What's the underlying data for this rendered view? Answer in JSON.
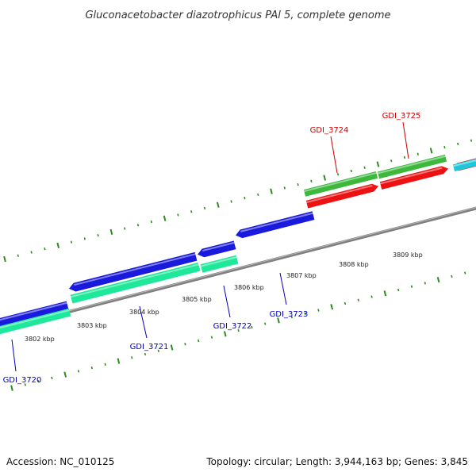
{
  "title": "Gluconacetobacter diazotrophicus PAl 5, complete genome",
  "footer": {
    "accession": "Accession: NC_010125",
    "summary": "Topology: circular; Length: 3,944,163 bp; Genes: 3,845"
  },
  "colors": {
    "backbone": "#7f7f7f",
    "tick": "#2e8b1e",
    "forward_cds": "#3cb83c",
    "forward_gene": "#ee1111",
    "reverse_cds": "#1a1adf",
    "reverse_gene": "#1ee89a",
    "other": "#1ec8d8",
    "forward_label": "#cc0000",
    "reverse_label": "#0000bb"
  },
  "ticks": {
    "labels": [
      "3802 kbp",
      "3803 kbp",
      "3804 kbp",
      "3805 kbp",
      "3806 kbp",
      "3807 kbp",
      "3808 kbp",
      "3809 kbp"
    ]
  },
  "genes": [
    {
      "name": "GDI_3720",
      "strand": "reverse"
    },
    {
      "name": "GDI_3721",
      "strand": "reverse"
    },
    {
      "name": "GDI_3722",
      "strand": "reverse"
    },
    {
      "name": "GDI_3723",
      "strand": "reverse"
    },
    {
      "name": "GDI_3724",
      "strand": "forward"
    },
    {
      "name": "GDI_3725",
      "strand": "forward"
    }
  ]
}
